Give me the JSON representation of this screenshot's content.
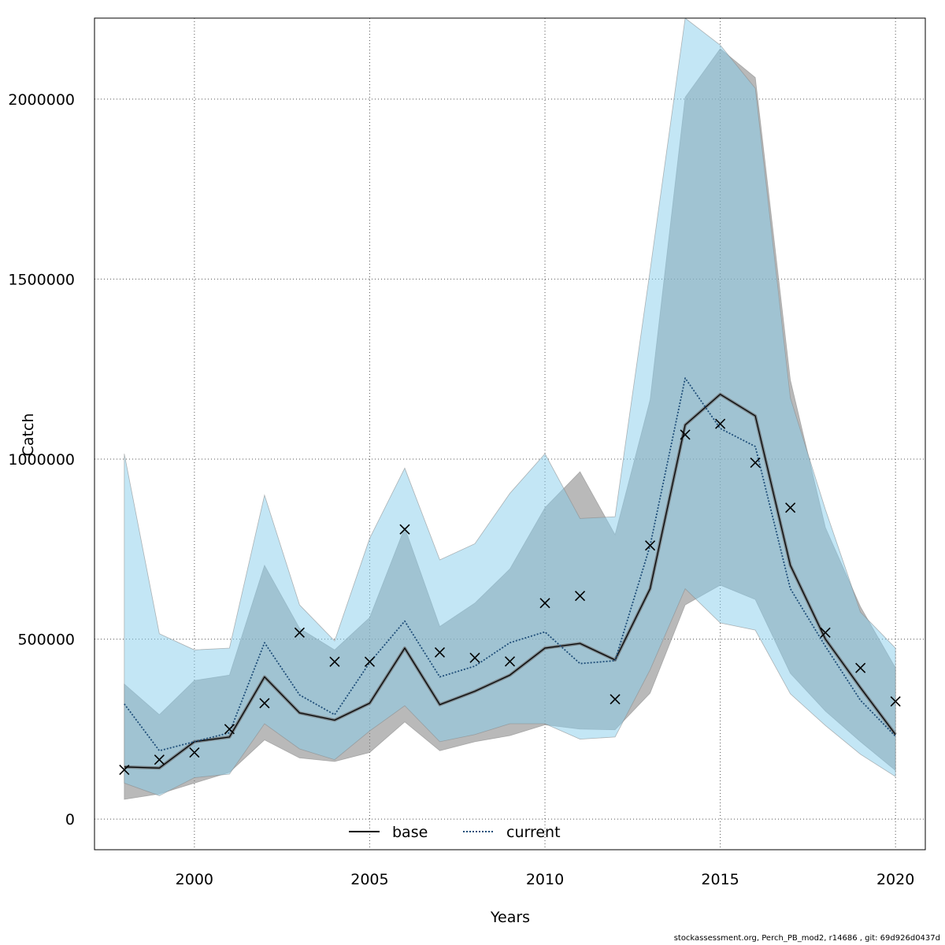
{
  "chart_data": {
    "type": "line",
    "xlabel": "Years",
    "ylabel": "Catch",
    "xlim": [
      1997.15,
      2020.85
    ],
    "ylim": [
      -85000,
      2225000
    ],
    "x_ticks": [
      2000,
      2005,
      2010,
      2015,
      2020
    ],
    "x_tick_labels": [
      "2000",
      "2005",
      "2010",
      "2015",
      "2020"
    ],
    "y_ticks": [
      0,
      500000,
      1000000,
      1500000,
      2000000
    ],
    "y_tick_labels": [
      "0",
      "500000",
      "1000000",
      "1500000",
      "2000000"
    ],
    "grid": true,
    "legend_position": "bottom",
    "x": [
      1998,
      1999,
      2000,
      2001,
      2002,
      2003,
      2004,
      2005,
      2006,
      2007,
      2008,
      2009,
      2010,
      2011,
      2012,
      2013,
      2014,
      2015,
      2016,
      2017,
      2018,
      2019,
      2020
    ],
    "series": [
      {
        "name": "base",
        "line_style": "solid",
        "color": "#000000",
        "band_color": "#808080",
        "values": [
          145000,
          142000,
          215000,
          228000,
          395000,
          295000,
          275000,
          322000,
          475000,
          318000,
          355000,
          400000,
          475000,
          488000,
          442000,
          640000,
          1095000,
          1180000,
          1120000,
          705000,
          500000,
          365000,
          235000
        ],
        "lower": [
          55000,
          70000,
          100000,
          130000,
          220000,
          170000,
          160000,
          185000,
          270000,
          190000,
          215000,
          232000,
          262000,
          250000,
          248000,
          350000,
          595000,
          650000,
          610000,
          405000,
          300000,
          215000,
          135000
        ],
        "upper": [
          375000,
          290000,
          385000,
          400000,
          705000,
          530000,
          470000,
          560000,
          810000,
          535000,
          600000,
          695000,
          865000,
          965000,
          790000,
          1165000,
          2005000,
          2140000,
          2060000,
          1220000,
          810000,
          590000,
          420000
        ]
      },
      {
        "name": "current",
        "line_style": "dotted",
        "color": "#1f4e79",
        "band_color": "#87ceeb",
        "values": [
          320000,
          190000,
          215000,
          240000,
          490000,
          345000,
          290000,
          435000,
          550000,
          395000,
          425000,
          490000,
          520000,
          432000,
          440000,
          760000,
          1225000,
          1085000,
          1035000,
          640000,
          480000,
          330000,
          230000
        ],
        "lower": [
          100000,
          65000,
          115000,
          125000,
          265000,
          195000,
          165000,
          245000,
          315000,
          215000,
          235000,
          265000,
          265000,
          222000,
          228000,
          415000,
          640000,
          545000,
          525000,
          348000,
          260000,
          180000,
          118000
        ],
        "upper": [
          1015000,
          515000,
          470000,
          475000,
          900000,
          595000,
          495000,
          780000,
          975000,
          720000,
          765000,
          905000,
          1015000,
          835000,
          840000,
          1525000,
          2225000,
          2150000,
          2030000,
          1170000,
          860000,
          575000,
          475000
        ]
      }
    ],
    "observations": {
      "marker": "x",
      "values": [
        137000,
        165000,
        185000,
        250000,
        322000,
        518000,
        437000,
        437000,
        805000,
        463000,
        448000,
        438000,
        600000,
        620000,
        333000,
        760000,
        1068000,
        1098000,
        990000,
        865000,
        518000,
        420000,
        327000
      ]
    }
  },
  "footer": "stockassessment.org, Perch_PB_mod2, r14686 , git: 69d926d0437d"
}
